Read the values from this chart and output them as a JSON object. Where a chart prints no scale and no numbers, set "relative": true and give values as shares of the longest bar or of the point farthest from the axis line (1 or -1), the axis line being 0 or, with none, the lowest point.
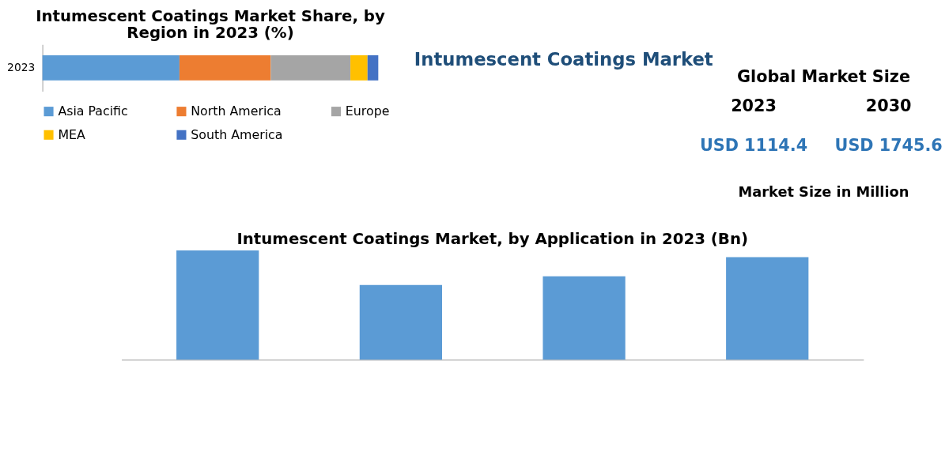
{
  "chart_data": [
    {
      "type": "bar",
      "title": [
        "Intumescent Coatings Market Share, by",
        "Region in 2023 (%)"
      ],
      "categories": [
        "2023"
      ],
      "orientation": "horizontal",
      "stacked": true,
      "relative": true,
      "legend": "bottom",
      "tick_labels": "y",
      "series": [
        {
          "name": "Asia Pacific",
          "color": "#5b9bd5",
          "values": [
            0.408
          ]
        },
        {
          "name": "North America",
          "color": "#ed7d31",
          "values": [
            0.272
          ]
        },
        {
          "name": "Europe",
          "color": "#a5a5a5",
          "values": [
            0.237
          ]
        },
        {
          "name": "MEA",
          "color": "#ffc000",
          "values": [
            0.051
          ]
        },
        {
          "name": "South America",
          "color": "#4472c4",
          "values": [
            0.032
          ]
        }
      ]
    },
    {
      "type": "other",
      "title": "Intumescent Coatings Market",
      "subtitle": "Global Market Size",
      "categories": [
        "2023",
        "2030"
      ],
      "annotations": [
        "USD 1114.4",
        "USD 1745.6",
        "Market Size in Million"
      ]
    },
    {
      "type": "bar",
      "title": "Intumescent Coatings Market, by Application in 2023 (Bn)",
      "categories": [
        null,
        null,
        null,
        null
      ],
      "relative": true,
      "tick_labels": false,
      "series": [
        {
          "color": "#5b9bd5",
          "values": [
            1,
            0.684,
            0.763,
            0.939
          ]
        }
      ]
    }
  ]
}
